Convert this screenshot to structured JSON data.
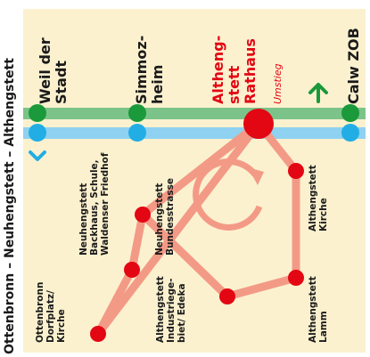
{
  "title": "Ottenbronn – Neuhengstett – Althengstett",
  "stations": {
    "weil_der_stadt": [
      "Weil der",
      "Stadt"
    ],
    "simmozheim": [
      "Simmoz-",
      "heim"
    ],
    "althengstett_rathaus": [
      "Altheng-",
      "stett",
      "Rathaus"
    ],
    "transfer_note": "Umstieg",
    "calw_zob": "Calw ZOB"
  },
  "stops": {
    "ottenbronn": [
      "Ottenbronn",
      "Dorfplatz/",
      "Kirche"
    ],
    "neuhengstett_backhaus": [
      "Neuhengstett",
      "Backhaus, Schule,",
      "Waldenser Friedhof"
    ],
    "neuhengstett_bundesstrasse": [
      "Neuhengstett",
      "Bundesstrasse"
    ],
    "althengstett_industriegebiet": [
      "Althengstett",
      "Industriege-",
      "biet/ Edeka"
    ],
    "althengstett_lamm": [
      "Althengstett",
      "Lamm"
    ],
    "althengstett_kirche": [
      "Althengstett",
      "Kirche"
    ]
  },
  "colors": {
    "background": "#fbf1cf",
    "rail_green": "#7cc389",
    "rail_blue": "#8fd1f0",
    "station_green": "#1a9a3a",
    "station_blue": "#22aee5",
    "station_red": "#e30613",
    "bus_route": "#f39a86",
    "arrow_blue": "#22aee5",
    "arrow_green": "#1a9a3a"
  }
}
